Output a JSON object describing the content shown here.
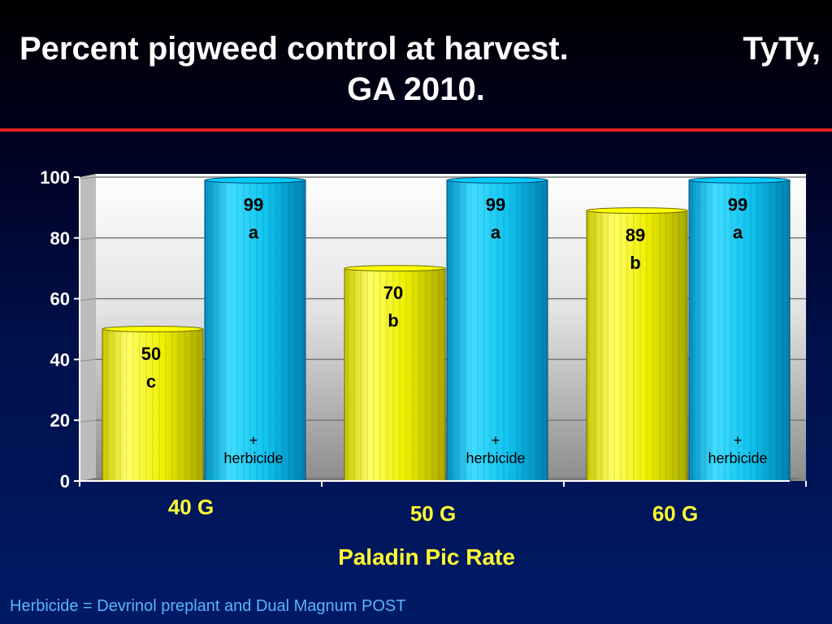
{
  "title": {
    "part1": "Percent pigweed control at harvest.",
    "part2": "TyTy,",
    "part3": "GA 2010."
  },
  "footnote": "Herbicide = Devrinol preplant and Dual Magnum POST",
  "colors": {
    "title": "#ffffff",
    "rule": "#e0201e",
    "bar_without": "#ffff00",
    "bar_with": "#00ccff",
    "labels_yellow": "#ffff33",
    "footnote": "#5ab4ff"
  },
  "chart_data": {
    "type": "bar",
    "categories": [
      "40 G",
      "50 G",
      "60 G"
    ],
    "xlabel": "Paladin Pic Rate",
    "ylabel": "",
    "ylim": [
      0,
      100
    ],
    "yticks": [
      0,
      20,
      40,
      60,
      80,
      100
    ],
    "grid": true,
    "series": [
      {
        "values": [
          50,
          70,
          89
        ],
        "letters": [
          "c",
          "b",
          "b"
        ],
        "note": ""
      },
      {
        "values": [
          99,
          99,
          99
        ],
        "letters": [
          "a",
          "a",
          "a"
        ],
        "note": "+ herbicide"
      }
    ]
  }
}
